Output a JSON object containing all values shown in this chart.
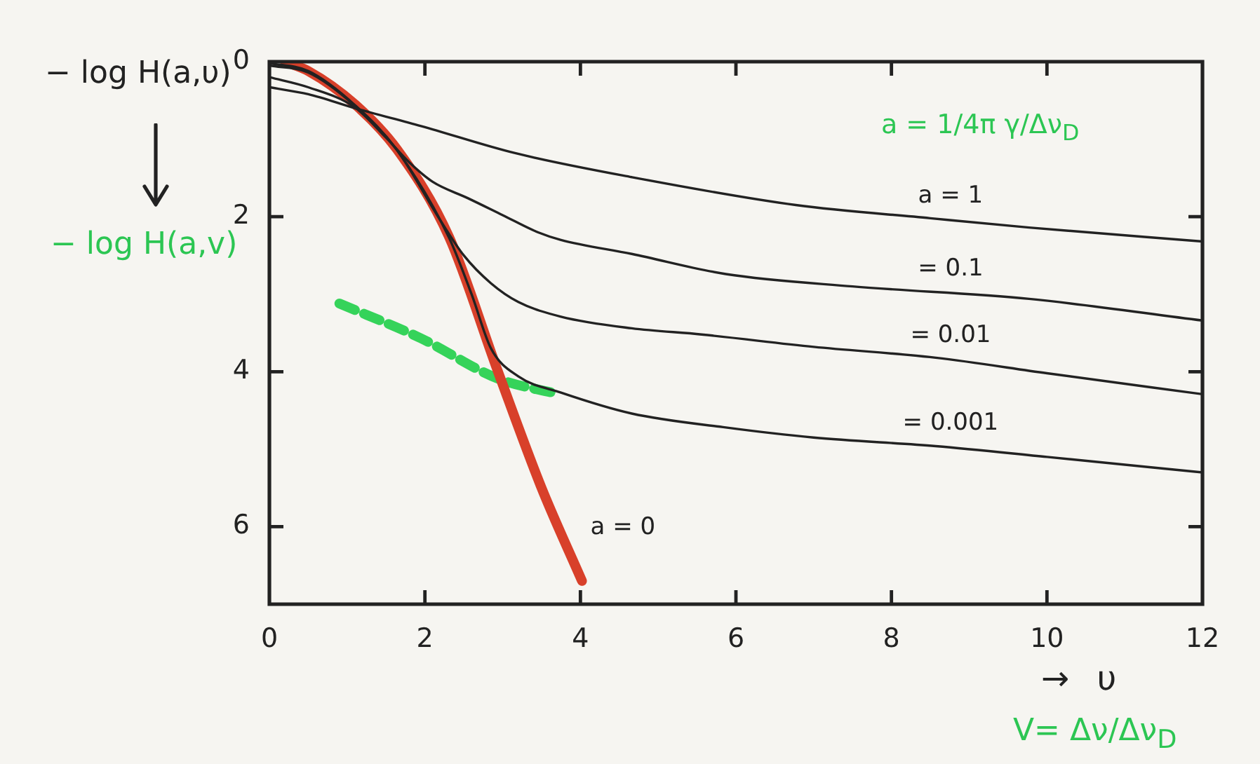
{
  "chart_data": {
    "type": "line",
    "xlabel": "→ υ",
    "ylabel": "− log H(a,υ)",
    "annotations": [
      "− log H(a,v)",
      "a = 1/4π γ/Δν$_{D}$",
      "V= Δν/Δν$_{D}$"
    ],
    "xlim": [
      0,
      12
    ],
    "xticks": [
      0,
      2,
      4,
      6,
      8,
      10,
      12
    ],
    "ylim": [
      7,
      0
    ],
    "yticks": [
      0,
      2,
      4,
      6
    ],
    "series": [
      {
        "name": "a = 0",
        "color": "#d8402a",
        "x": [
          0.2,
          0.5,
          1.1,
          1.64,
          2.31,
          2.94,
          3.5,
          4.02
        ],
        "values": [
          0,
          0.12,
          0.55,
          1.13,
          2.26,
          4.0,
          5.5,
          6.7
        ]
      },
      {
        "name": "a = 1",
        "color": "#222222",
        "x": [
          0,
          0.5,
          1.1,
          1.95,
          3.16,
          4.66,
          6.77,
          8.5,
          9.77,
          12
        ],
        "values": [
          0.33,
          0.42,
          0.6,
          0.83,
          1.18,
          1.49,
          1.85,
          2.02,
          2.14,
          2.32
        ]
      },
      {
        "name": "= 0.1",
        "color": "#222222",
        "x": [
          0,
          0.5,
          1.1,
          1.5,
          1.8,
          2.1,
          2.55,
          3.0,
          3.45,
          3.75,
          4.66,
          5.87,
          7.5,
          9.77,
          12
        ],
        "values": [
          0.2,
          0.33,
          0.59,
          0.98,
          1.3,
          1.55,
          1.76,
          1.98,
          2.2,
          2.3,
          2.48,
          2.74,
          2.9,
          3.06,
          3.34
        ]
      },
      {
        "name": "= 0.01",
        "color": "#222222",
        "x": [
          0,
          0.5,
          1.1,
          1.64,
          2.2,
          2.5,
          2.85,
          3.2,
          3.75,
          4.66,
          5.56,
          7,
          8.57,
          10,
          12
        ],
        "values": [
          0.05,
          0.14,
          0.57,
          1.14,
          2.05,
          2.5,
          2.86,
          3.1,
          3.29,
          3.44,
          3.52,
          3.68,
          3.82,
          4.02,
          4.29
        ]
      },
      {
        "name": "= 0.001",
        "color": "#222222",
        "x": [
          0,
          0.5,
          1.1,
          1.64,
          2.31,
          2.6,
          2.85,
          3.2,
          3.75,
          4.66,
          5.87,
          7,
          8.57,
          10,
          12
        ],
        "values": [
          0.02,
          0.12,
          0.56,
          1.14,
          2.27,
          3.0,
          3.7,
          4.06,
          4.27,
          4.54,
          4.72,
          4.85,
          4.96,
          5.1,
          5.3
        ]
      },
      {
        "color": "#35d35a",
        "line_style": "dashed",
        "x": [
          0.9,
          1.95,
          2.94,
          3.72
        ],
        "values": [
          3.12,
          3.57,
          4.09,
          4.29
        ]
      }
    ]
  }
}
